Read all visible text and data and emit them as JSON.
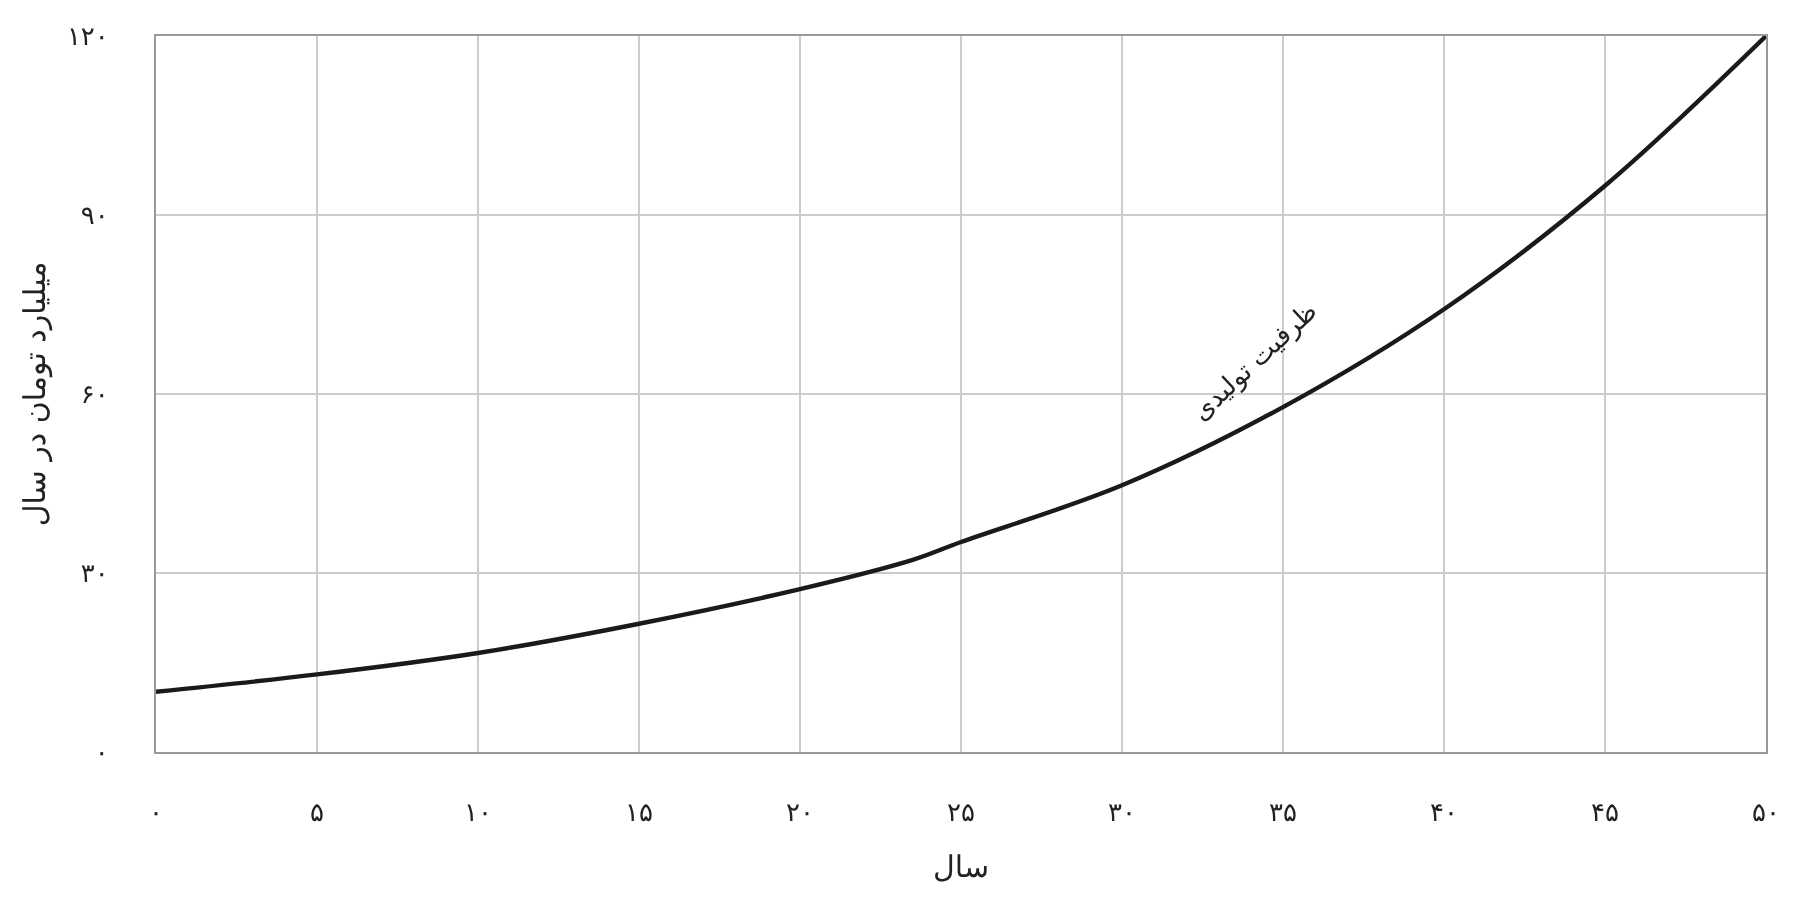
{
  "chart_data": {
    "type": "line",
    "xlabel": "سال",
    "ylabel": "میلیارد تومان در سال",
    "x": [
      0,
      5,
      10,
      15,
      20,
      23.5,
      25,
      30,
      35,
      40,
      45,
      50
    ],
    "series": [
      {
        "name": "ظرفیت تولیدی",
        "color": "#1a1a1a",
        "values": [
          10.1,
          13.0,
          16.6,
          21.5,
          27.3,
          32.2,
          35.2,
          44.7,
          57.8,
          74.2,
          94.9,
          120
        ]
      }
    ],
    "xlim": [
      0,
      50
    ],
    "ylim": [
      0,
      120
    ],
    "xticks": [
      {
        "value": 0,
        "label": "۰"
      },
      {
        "value": 5,
        "label": "۵"
      },
      {
        "value": 10,
        "label": "۱۰"
      },
      {
        "value": 15,
        "label": "۱۵"
      },
      {
        "value": 20,
        "label": "۲۰"
      },
      {
        "value": 25,
        "label": "۲۵"
      },
      {
        "value": 30,
        "label": "۳۰"
      },
      {
        "value": 35,
        "label": "۳۵"
      },
      {
        "value": 40,
        "label": "۴۰"
      },
      {
        "value": 45,
        "label": "۴۵"
      },
      {
        "value": 50,
        "label": "۵۰"
      }
    ],
    "yticks": [
      {
        "value": 0,
        "label": "۰"
      },
      {
        "value": 30,
        "label": "۳۰"
      },
      {
        "value": 60,
        "label": "۶۰"
      },
      {
        "value": 90,
        "label": "۹۰"
      },
      {
        "value": 120,
        "label": "۱۲۰"
      }
    ],
    "grid": true,
    "legend": false,
    "marker": "none",
    "line_style": "solid"
  }
}
